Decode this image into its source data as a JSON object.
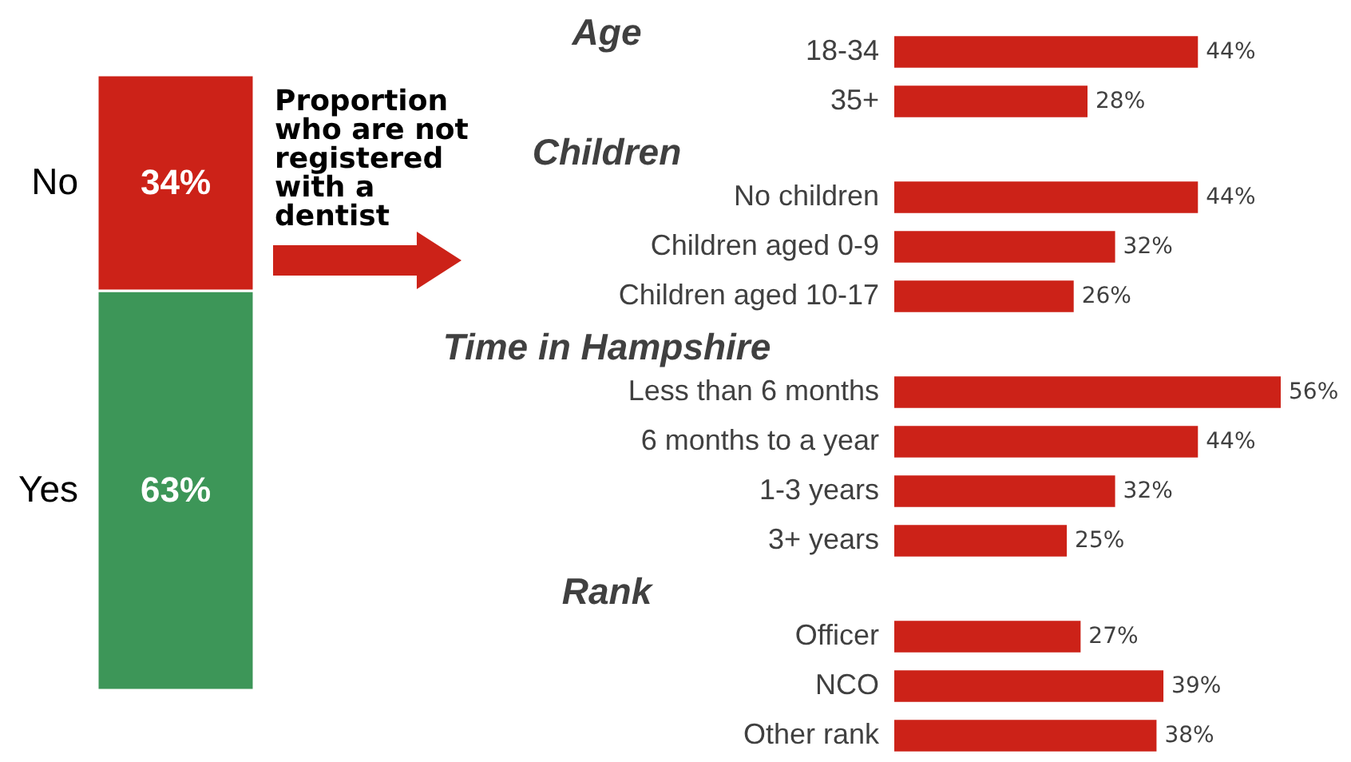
{
  "chart_data": [
    {
      "type": "bar",
      "stacked": true,
      "categories": [
        null
      ],
      "series": [
        {
          "name": "Yes",
          "color": "#3d9658",
          "values": [
            63
          ],
          "value_labels": [
            "63%"
          ]
        },
        {
          "name": "No",
          "color": "#cc2218",
          "values": [
            34
          ],
          "value_labels": [
            "34%"
          ]
        }
      ],
      "annotations": [
        "Proportion who are not registered with a dentist"
      ]
    },
    {
      "type": "bar",
      "orientation": "horizontal",
      "title": "Age",
      "categories": [
        "18-34",
        "35+"
      ],
      "values": [
        44,
        28
      ],
      "value_labels": [
        "44%",
        "28%"
      ],
      "color": "#cc2218"
    },
    {
      "type": "bar",
      "orientation": "horizontal",
      "title": "Children",
      "categories": [
        "No children",
        "Children aged 0-9",
        "Children aged 10-17"
      ],
      "values": [
        44,
        32,
        26
      ],
      "value_labels": [
        "44%",
        "32%",
        "26%"
      ],
      "color": "#cc2218"
    },
    {
      "type": "bar",
      "orientation": "horizontal",
      "title": "Time in Hampshire",
      "categories": [
        "Less than 6 months",
        "6 months to a year",
        "1-3 years",
        "3+ years"
      ],
      "values": [
        56,
        44,
        32,
        25
      ],
      "value_labels": [
        "56%",
        "44%",
        "32%",
        "25%"
      ],
      "color": "#cc2218"
    },
    {
      "type": "bar",
      "orientation": "horizontal",
      "title": "Rank",
      "categories": [
        "Officer",
        "NCO",
        "Other rank"
      ],
      "values": [
        27,
        39,
        38
      ],
      "value_labels": [
        "27%",
        "39%",
        "38%"
      ],
      "color": "#cc2218"
    }
  ]
}
